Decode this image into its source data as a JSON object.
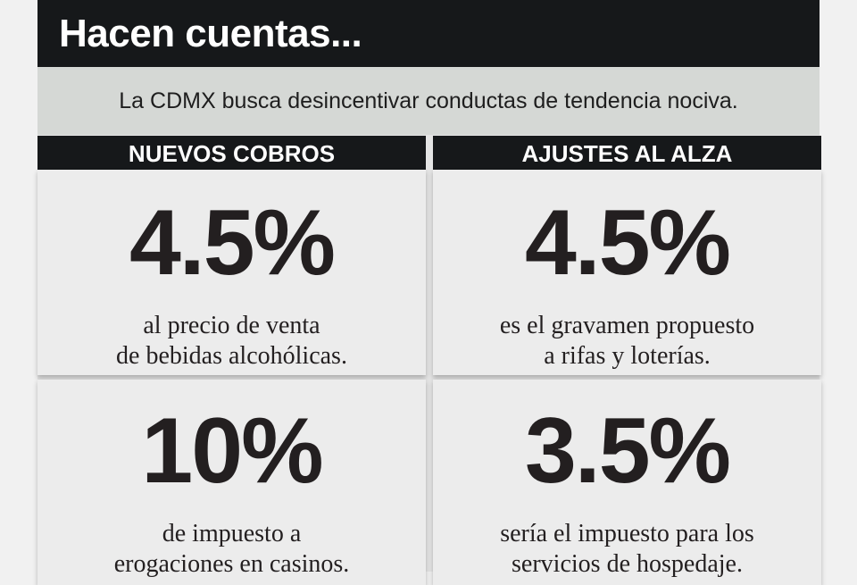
{
  "header": {
    "title": "Hacen cuentas...",
    "subtitle": "La CDMX busca desincentivar conductas de tendencia nociva."
  },
  "columns": [
    {
      "heading": "NUEVOS COBROS",
      "cards": [
        {
          "figure": "4.5%",
          "lines": [
            "al precio de venta",
            "de bebidas alcohólicas."
          ]
        },
        {
          "figure": "10%",
          "lines": [
            "de impuesto a",
            "erogaciones en casinos."
          ]
        }
      ]
    },
    {
      "heading": "AJUSTES AL ALZA",
      "cards": [
        {
          "figure": "4.5%",
          "lines": [
            "es el gravamen propuesto",
            "a rifas y loterías."
          ]
        },
        {
          "figure": "3.5%",
          "lines": [
            "sería el impuesto para los",
            "servicios de hospedaje."
          ]
        }
      ]
    }
  ]
}
